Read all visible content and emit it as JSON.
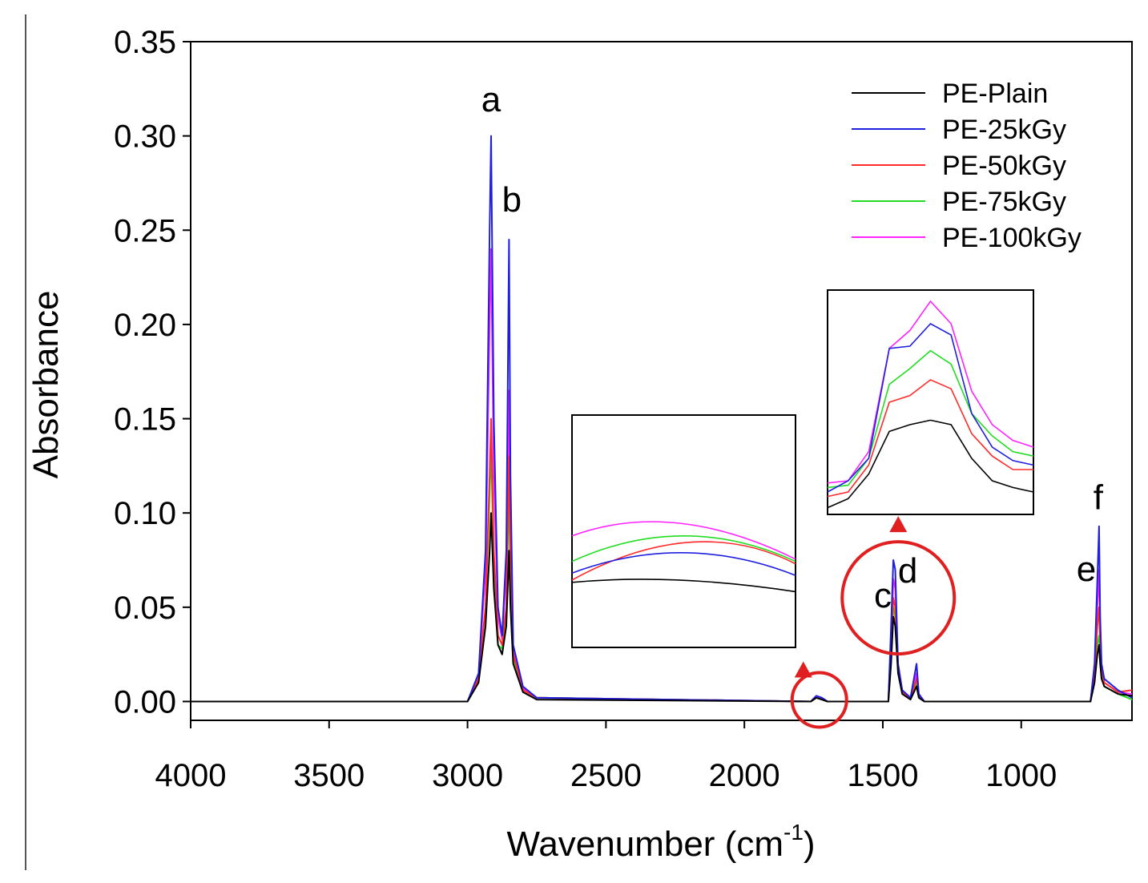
{
  "chart_data": {
    "type": "line",
    "title": "",
    "xlabel": "Wavenumber (cm",
    "xlabel_superscript": "-1",
    "xlabel_close": ")",
    "ylabel": "Absorbance",
    "xlim": [
      4000,
      600
    ],
    "ylim": [
      -0.01,
      0.35
    ],
    "x_reversed": true,
    "x_ticks": [
      4000,
      3500,
      3000,
      2500,
      2000,
      1500,
      1000
    ],
    "x_tick_labels": [
      "4000",
      "3500",
      "3000",
      "2500",
      "2000",
      "1500",
      "1000"
    ],
    "y_ticks": [
      0.0,
      0.05,
      0.1,
      0.15,
      0.2,
      0.25,
      0.3,
      0.35
    ],
    "y_tick_labels": [
      "0.00",
      "0.05",
      "0.10",
      "0.15",
      "0.20",
      "0.25",
      "0.30",
      "0.35"
    ],
    "grid": false,
    "legend": "top-right",
    "series": [
      {
        "name": "PE-Plain",
        "color": "#000000",
        "x": [
          4000,
          3000,
          2960,
          2935,
          2920,
          2915,
          2905,
          2890,
          2875,
          2860,
          2850,
          2845,
          2835,
          2800,
          2750,
          1760,
          1740,
          1720,
          1700,
          1480,
          1470,
          1462,
          1455,
          1445,
          1430,
          1400,
          1378,
          1370,
          1350,
          750,
          735,
          725,
          719,
          715,
          710,
          700,
          650,
          600
        ],
        "y": [
          0.0,
          0.0,
          0.01,
          0.04,
          0.08,
          0.1,
          0.06,
          0.03,
          0.025,
          0.04,
          0.08,
          0.05,
          0.02,
          0.005,
          0.001,
          0.0,
          0.002,
          0.001,
          0.0,
          0.0,
          0.02,
          0.045,
          0.04,
          0.015,
          0.004,
          0.001,
          0.008,
          0.002,
          0.0,
          0.0,
          0.01,
          0.025,
          0.03,
          0.02,
          0.012,
          0.008,
          0.004,
          0.003
        ]
      },
      {
        "name": "PE-25kGy",
        "color": "#1f1fe0",
        "x": [
          4000,
          3000,
          2960,
          2935,
          2920,
          2915,
          2905,
          2890,
          2875,
          2860,
          2850,
          2845,
          2835,
          2800,
          2750,
          1760,
          1740,
          1720,
          1700,
          1480,
          1470,
          1462,
          1455,
          1445,
          1430,
          1400,
          1378,
          1370,
          1350,
          750,
          735,
          725,
          719,
          715,
          710,
          700,
          650,
          600
        ],
        "y": [
          0.0,
          0.0,
          0.015,
          0.08,
          0.25,
          0.3,
          0.15,
          0.05,
          0.035,
          0.08,
          0.245,
          0.12,
          0.03,
          0.008,
          0.002,
          0.0,
          0.003,
          0.002,
          0.0,
          0.0,
          0.04,
          0.075,
          0.07,
          0.02,
          0.006,
          0.002,
          0.02,
          0.004,
          0.0,
          0.0,
          0.02,
          0.065,
          0.093,
          0.045,
          0.02,
          0.012,
          0.006,
          0.002
        ]
      },
      {
        "name": "PE-50kGy",
        "color": "#ff2a2a",
        "x": [
          4000,
          3000,
          2960,
          2935,
          2920,
          2915,
          2905,
          2890,
          2875,
          2860,
          2850,
          2845,
          2835,
          2800,
          2750,
          1760,
          1740,
          1720,
          1700,
          1480,
          1470,
          1462,
          1455,
          1445,
          1430,
          1400,
          1378,
          1370,
          1350,
          750,
          735,
          725,
          719,
          715,
          710,
          700,
          650,
          600
        ],
        "y": [
          0.0,
          0.0,
          0.012,
          0.05,
          0.12,
          0.15,
          0.08,
          0.035,
          0.03,
          0.05,
          0.13,
          0.07,
          0.025,
          0.006,
          0.002,
          0.0,
          0.002,
          0.001,
          0.0,
          0.0,
          0.03,
          0.055,
          0.05,
          0.018,
          0.005,
          0.002,
          0.012,
          0.003,
          0.0,
          0.0,
          0.015,
          0.04,
          0.05,
          0.03,
          0.018,
          0.01,
          0.005,
          0.006
        ]
      },
      {
        "name": "PE-75kGy",
        "color": "#22dd22",
        "x": [
          4000,
          3000,
          2960,
          2935,
          2920,
          2915,
          2905,
          2890,
          2875,
          2860,
          2850,
          2845,
          2835,
          2800,
          2750,
          1760,
          1740,
          1720,
          1700,
          1480,
          1470,
          1462,
          1455,
          1445,
          1430,
          1400,
          1378,
          1370,
          1350,
          750,
          735,
          725,
          719,
          715,
          710,
          700,
          650,
          600
        ],
        "y": [
          0.0,
          0.0,
          0.012,
          0.05,
          0.11,
          0.135,
          0.07,
          0.03,
          0.028,
          0.045,
          0.115,
          0.06,
          0.022,
          0.006,
          0.002,
          0.0,
          0.002,
          0.001,
          0.0,
          0.0,
          0.025,
          0.05,
          0.045,
          0.016,
          0.005,
          0.002,
          0.01,
          0.003,
          0.0,
          0.0,
          0.012,
          0.03,
          0.035,
          0.025,
          0.015,
          0.008,
          0.004,
          0.001
        ]
      },
      {
        "name": "PE-100kGy",
        "color": "#ff22ff",
        "x": [
          4000,
          3000,
          2960,
          2935,
          2920,
          2915,
          2905,
          2890,
          2875,
          2860,
          2850,
          2845,
          2835,
          2800,
          2750,
          1760,
          1740,
          1720,
          1700,
          1480,
          1470,
          1462,
          1455,
          1445,
          1430,
          1400,
          1378,
          1370,
          1350,
          750,
          735,
          725,
          719,
          715,
          710,
          700,
          650,
          600
        ],
        "y": [
          0.0,
          0.0,
          0.014,
          0.07,
          0.2,
          0.24,
          0.12,
          0.045,
          0.033,
          0.07,
          0.165,
          0.09,
          0.028,
          0.007,
          0.002,
          0.0,
          0.003,
          0.002,
          0.0,
          0.0,
          0.03,
          0.065,
          0.06,
          0.02,
          0.006,
          0.002,
          0.015,
          0.004,
          0.0,
          0.0,
          0.018,
          0.05,
          0.07,
          0.04,
          0.02,
          0.01,
          0.005,
          0.004
        ]
      }
    ],
    "peak_labels": [
      {
        "text": "a",
        "x": 2915,
        "y": 0.313
      },
      {
        "text": "b",
        "x": 2840,
        "y": 0.26
      },
      {
        "text": "c",
        "x": 1500,
        "y": 0.05
      },
      {
        "text": "d",
        "x": 1410,
        "y": 0.063
      },
      {
        "text": "e",
        "x": 765,
        "y": 0.064
      },
      {
        "text": "f",
        "x": 722,
        "y": 0.102
      }
    ],
    "highlight_circles": [
      {
        "name": "carbonyl-region",
        "x": 1735,
        "y": 0.0
      },
      {
        "name": "cd-region",
        "x": 1450,
        "y": 0.055
      }
    ],
    "insets": [
      {
        "name": "carbonyl-inset",
        "series": {
          "PE-Plain": [
            [
              0,
              0.72
            ],
            [
              0.45,
              0.68
            ],
            [
              1,
              0.76
            ]
          ],
          "PE-25kGy": [
            [
              0,
              0.68
            ],
            [
              0.5,
              0.5
            ],
            [
              1,
              0.69
            ]
          ],
          "PE-50kGy": [
            [
              0,
              0.71
            ],
            [
              0.55,
              0.42
            ],
            [
              1,
              0.64
            ]
          ],
          "PE-75kGy": [
            [
              0,
              0.63
            ],
            [
              0.5,
              0.41
            ],
            [
              1,
              0.63
            ]
          ],
          "PE-100kGy": [
            [
              0,
              0.52
            ],
            [
              0.45,
              0.36
            ],
            [
              1,
              0.62
            ]
          ]
        }
      },
      {
        "name": "cd-inset",
        "series": {
          "PE-Plain": [
            [
              0,
              0.97
            ],
            [
              0.1,
              0.93
            ],
            [
              0.2,
              0.82
            ],
            [
              0.3,
              0.63
            ],
            [
              0.4,
              0.6
            ],
            [
              0.5,
              0.58
            ],
            [
              0.6,
              0.6
            ],
            [
              0.7,
              0.75
            ],
            [
              0.8,
              0.85
            ],
            [
              0.9,
              0.88
            ],
            [
              1,
              0.9
            ]
          ],
          "PE-25kGy": [
            [
              0,
              0.9
            ],
            [
              0.1,
              0.85
            ],
            [
              0.2,
              0.75
            ],
            [
              0.3,
              0.26
            ],
            [
              0.4,
              0.25
            ],
            [
              0.5,
              0.15
            ],
            [
              0.6,
              0.2
            ],
            [
              0.7,
              0.55
            ],
            [
              0.8,
              0.7
            ],
            [
              0.9,
              0.76
            ],
            [
              1,
              0.78
            ]
          ],
          "PE-50kGy": [
            [
              0,
              0.92
            ],
            [
              0.1,
              0.9
            ],
            [
              0.2,
              0.78
            ],
            [
              0.3,
              0.5
            ],
            [
              0.4,
              0.47
            ],
            [
              0.5,
              0.4
            ],
            [
              0.6,
              0.44
            ],
            [
              0.7,
              0.64
            ],
            [
              0.8,
              0.74
            ],
            [
              0.9,
              0.8
            ],
            [
              1,
              0.8
            ]
          ],
          "PE-75kGy": [
            [
              0,
              0.88
            ],
            [
              0.1,
              0.87
            ],
            [
              0.2,
              0.75
            ],
            [
              0.3,
              0.42
            ],
            [
              0.4,
              0.35
            ],
            [
              0.5,
              0.27
            ],
            [
              0.6,
              0.33
            ],
            [
              0.7,
              0.55
            ],
            [
              0.8,
              0.65
            ],
            [
              0.9,
              0.72
            ],
            [
              1,
              0.74
            ]
          ],
          "PE-100kGy": [
            [
              0,
              0.86
            ],
            [
              0.1,
              0.85
            ],
            [
              0.2,
              0.72
            ],
            [
              0.3,
              0.26
            ],
            [
              0.4,
              0.18
            ],
            [
              0.5,
              0.05
            ],
            [
              0.6,
              0.15
            ],
            [
              0.7,
              0.45
            ],
            [
              0.8,
              0.6
            ],
            [
              0.9,
              0.67
            ],
            [
              1,
              0.7
            ]
          ]
        }
      }
    ]
  },
  "marker_color": "#e02020"
}
